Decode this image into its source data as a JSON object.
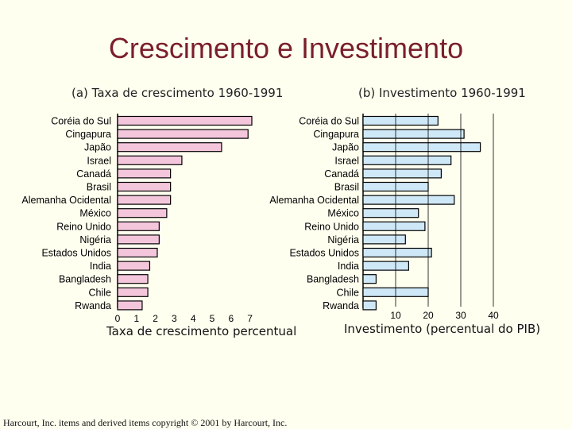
{
  "title": "Crescimento e Investimento",
  "footer": "Harcourt, Inc. items and derived items copyright © 2001 by Harcourt, Inc.",
  "chart_data": [
    {
      "type": "bar",
      "orientation": "horizontal",
      "title": "(a) Taxa de crescimento 1960-1991",
      "xlabel": "Taxa de crescimento percentual",
      "ylabel": "",
      "xlim": [
        0,
        7
      ],
      "xticks": [
        0,
        1,
        2,
        3,
        4,
        5,
        6,
        7
      ],
      "bar_color": "#f4c6dc",
      "categories": [
        "Coréia do Sul",
        "Cingapura",
        "Japão",
        "Israel",
        "Canadá",
        "Brasil",
        "Alemanha Ocidental",
        "México",
        "Reino Unido",
        "Nigéria",
        "Estados Unidos",
        "India",
        "Bangladesh",
        "Chile",
        "Rwanda"
      ],
      "values": [
        7.1,
        6.9,
        5.5,
        3.4,
        2.8,
        2.8,
        2.8,
        2.6,
        2.2,
        2.2,
        2.1,
        1.7,
        1.6,
        1.6,
        1.3
      ]
    },
    {
      "type": "bar",
      "orientation": "horizontal",
      "title": "(b) Investimento 1960-1991",
      "xlabel": "Investimento (percentual do PIB)",
      "ylabel": "",
      "xlim": [
        0,
        40
      ],
      "xticks": [
        10,
        20,
        30,
        40
      ],
      "bar_color": "#cfe8f7",
      "categories": [
        "Coréia do Sul",
        "Cingapura",
        "Japão",
        "Israel",
        "Canadá",
        "Brasil",
        "Alemanha Ocidental",
        "México",
        "Reino Unido",
        "Nigéria",
        "Estados Unidos",
        "India",
        "Bangladesh",
        "Chile",
        "Rwanda"
      ],
      "values": [
        23,
        31,
        36,
        27,
        24,
        20,
        28,
        17,
        19,
        13,
        21,
        14,
        4,
        20,
        4
      ]
    }
  ]
}
